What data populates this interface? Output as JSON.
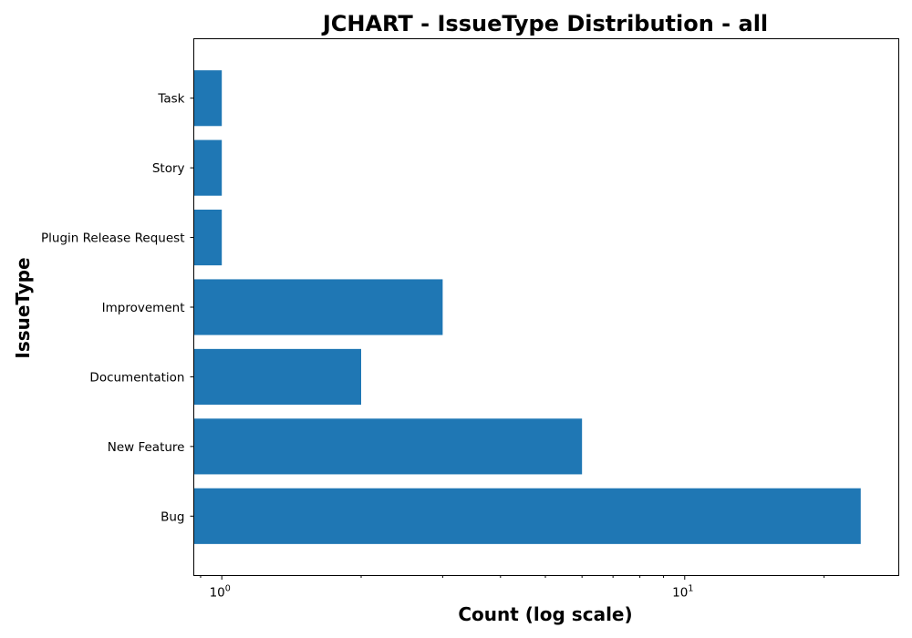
{
  "chart_data": {
    "type": "bar",
    "orientation": "horizontal",
    "title": "JCHART - IssueType Distribution - all",
    "xlabel": "Count (log scale)",
    "ylabel": "IssueType",
    "xscale": "log",
    "xlim": [
      0.87,
      29
    ],
    "categories": [
      "Bug",
      "New Feature",
      "Documentation",
      "Improvement",
      "Plugin Release Request",
      "Story",
      "Task"
    ],
    "values": [
      24,
      6,
      2,
      3,
      1,
      1,
      1
    ],
    "x_major_ticks": [
      {
        "value": 1,
        "base": "10",
        "exp": "0"
      },
      {
        "value": 10,
        "base": "10",
        "exp": "1"
      }
    ],
    "bar_color": "#1f77b4",
    "grid": false,
    "legend": "none"
  }
}
